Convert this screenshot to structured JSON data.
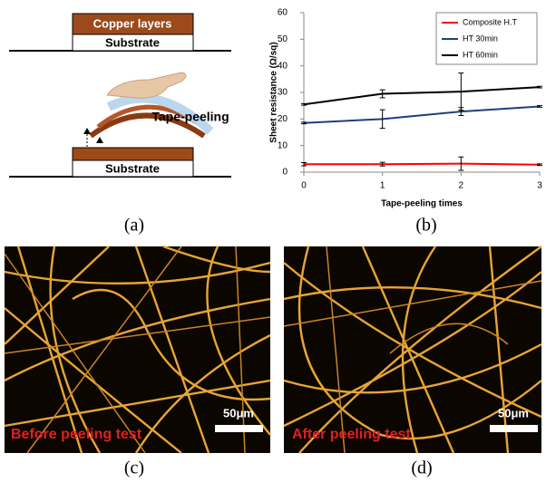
{
  "panel_a": {
    "top_layer": "Copper layers",
    "top_substrate": "Substrate",
    "tape_label": "Tape-peeling",
    "bottom_substrate": "Substrate"
  },
  "chart_data": {
    "type": "line",
    "x_label": "Tape-peeling times",
    "y_label": "Sheet resistance (Ω/sq)",
    "x": [
      0,
      1,
      2,
      3
    ],
    "xlim": [
      0,
      3
    ],
    "xticks": [
      0,
      1,
      2,
      3
    ],
    "ylim": [
      0,
      60
    ],
    "yticks": [
      0,
      10,
      20,
      30,
      40,
      50,
      60
    ],
    "legend": "upper right",
    "series": [
      {
        "name": "Composite H.T",
        "color": "#ff0000",
        "values": [
          3,
          3,
          3.2,
          2.8
        ],
        "errors": [
          0.6,
          0.7,
          2.5,
          0.3
        ]
      },
      {
        "name": "HT 30min",
        "color": "#1f3f7f",
        "values": [
          18.5,
          20,
          22.8,
          24.7
        ],
        "errors": [
          0.3,
          3.5,
          1.5,
          0.3
        ]
      },
      {
        "name": "HT 60min",
        "color": "#000000",
        "values": [
          25.5,
          29.5,
          30.3,
          32
        ],
        "errors": [
          0.3,
          1.5,
          7,
          0.3
        ]
      }
    ]
  },
  "panel_c": {
    "label": "Before peeling test",
    "scale": "50μm"
  },
  "panel_d": {
    "label": "After peeling test",
    "scale": "50μm"
  },
  "captions": [
    "(a)",
    "(b)",
    "(c)",
    "(d)"
  ]
}
